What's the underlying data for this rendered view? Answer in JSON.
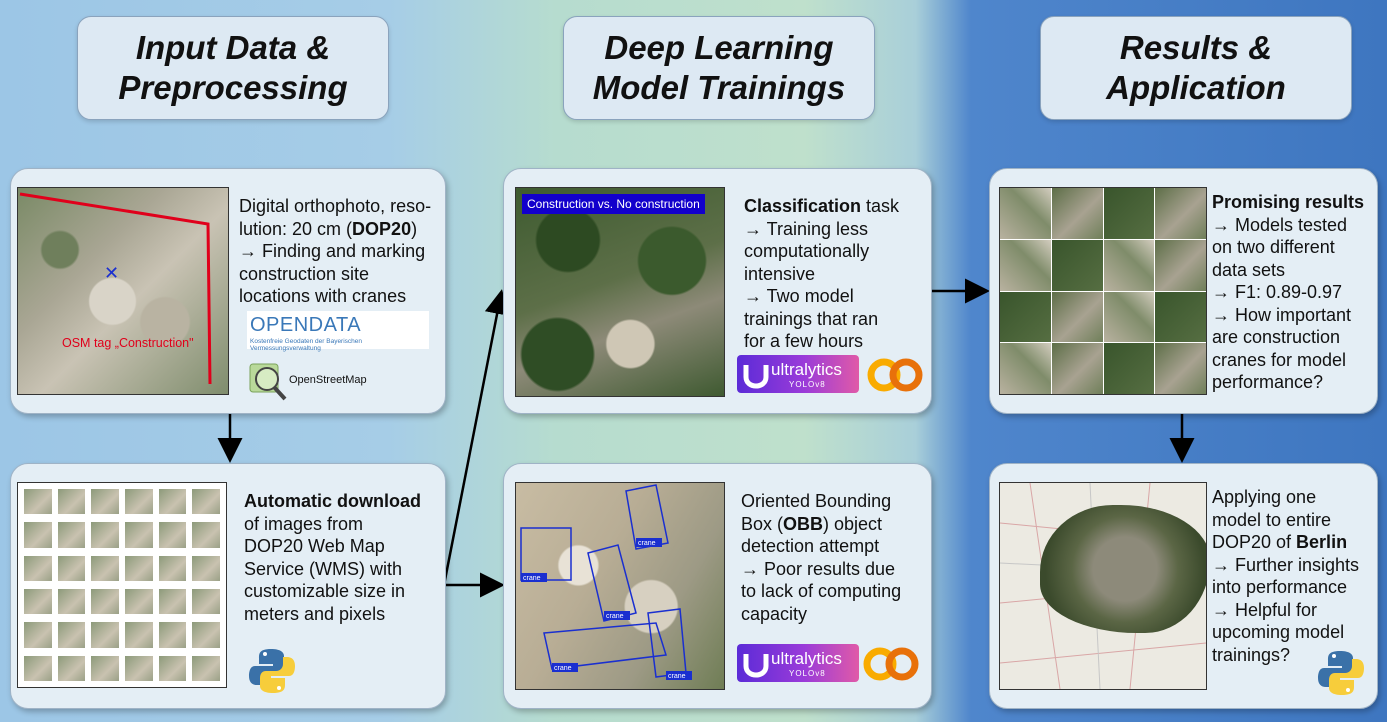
{
  "headers": {
    "left": {
      "line1": "Input Data &",
      "line2": "Preprocessing"
    },
    "middle": {
      "line1": "Deep Learning",
      "line2": "Model Trainings"
    },
    "right": {
      "line1": "Results &",
      "line2": "Application"
    }
  },
  "card_input": {
    "osm_tag": "OSM tag „Construction\"",
    "text_l1": "Digital orthophoto, reso-",
    "text_l2": "lution: 20 cm (DOP20)",
    "text_l3": "→ Finding and marking",
    "text_l4": "construction site",
    "text_l5": "locations with cranes",
    "logo_opendata_title": "OPENDATA",
    "logo_opendata_sub": "Kostenfreie Geodaten der Bayerischen Vermessungsverwaltung",
    "logo_osm": "OpenStreetMap"
  },
  "card_download": {
    "title": "Automatic download",
    "text_l2": "of images from",
    "text_l3": "DOP20 Web Map",
    "text_l4": "Service (WMS) with",
    "text_l5": "customizable size in",
    "text_l6": "meters and pixels"
  },
  "card_classification": {
    "overlay_label": "Construction vs. No construction",
    "title": "Classification",
    "title_rest": " task",
    "text_l2": "→ Training less",
    "text_l3": "computationally",
    "text_l4": "intensive",
    "text_l5": "→ Two model",
    "text_l6": "trainings that ran",
    "text_l7": "for a few hours",
    "logo_name": "ultralytics",
    "logo_sub": "YOLOv8"
  },
  "card_obb": {
    "crane_label": "crane",
    "text_l1": "Oriented Bounding",
    "text_l2": "Box (OBB) object",
    "text_l3": "detection attempt",
    "text_l4": "→ Poor results due",
    "text_l5": "to lack of computing",
    "text_l6": "capacity",
    "logo_name": "ultralytics",
    "logo_sub": "YOLOv8"
  },
  "card_results": {
    "title": "Promising results",
    "text_l2": "→ Models tested",
    "text_l3": "on two different",
    "text_l4": "data sets",
    "text_l5": "→ F1: 0.89-0.97",
    "text_l6": "→ How important",
    "text_l7": "are construction",
    "text_l8": "cranes for model",
    "text_l9": "performance?"
  },
  "card_berlin": {
    "text_l1": "Applying one",
    "text_l2": "model to entire",
    "text_l3_pre": "DOP20 of ",
    "text_l3_bold": "Berlin",
    "text_l4": "→ Further insights",
    "text_l5": "into performance",
    "text_l6": "→ Helpful for",
    "text_l7": "upcoming model",
    "text_l8": "trainings?"
  },
  "colors": {
    "osm_red": "#e0001b",
    "label_blue": "#1200cc",
    "python_blue": "#3a71a8",
    "python_yellow": "#f7cd3b",
    "colab_orange": "#f9ab00"
  }
}
